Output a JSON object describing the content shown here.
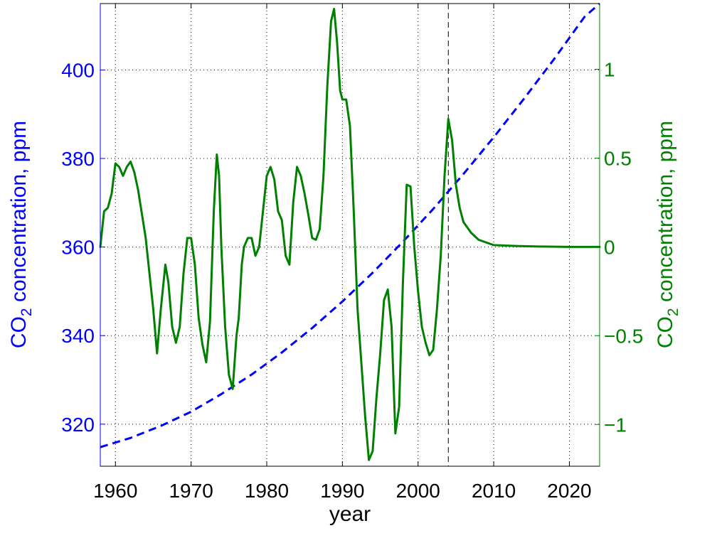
{
  "chart_data": {
    "type": "line",
    "xlabel": "year",
    "xlim": [
      1958,
      2024
    ],
    "x_ticks": [
      "1960",
      "1970",
      "1980",
      "1990",
      "2000",
      "2010",
      "2020"
    ],
    "y_left": {
      "label_main": "CO",
      "label_sub": "2",
      "label_rest": " concentration, ppm",
      "color": "#0000ff",
      "ylim": [
        310.5,
        415
      ],
      "ticks": [
        "320",
        "340",
        "360",
        "380",
        "400"
      ]
    },
    "y_right": {
      "label_main": "CO",
      "label_sub": "2",
      "label_rest": " concentration, ppm",
      "color": "#008000",
      "ylim": [
        -1.235,
        1.37
      ],
      "ticks": [
        "−1",
        "−0.5",
        "0",
        "0.5",
        "1"
      ]
    },
    "grid": true,
    "vline_x": 2004,
    "series": [
      {
        "axis": "left",
        "style": "dashed",
        "color": "#0000ff",
        "x": [
          1958,
          1962,
          1966,
          1970,
          1974,
          1978,
          1982,
          1986,
          1990,
          1994,
          1998,
          2002,
          2006,
          2010,
          2014,
          2018,
          2022,
          2024
        ],
        "y": [
          314.8,
          316.9,
          319.6,
          322.8,
          326.8,
          331.2,
          336.2,
          341.7,
          347.7,
          354.2,
          361.2,
          368.6,
          376.5,
          384.8,
          393.5,
          402.5,
          412.0,
          417.0
        ]
      },
      {
        "axis": "right",
        "style": "solid",
        "color": "#008000",
        "x": [
          1958,
          1958.5,
          1959,
          1959.5,
          1960,
          1960.5,
          1961,
          1961.5,
          1962,
          1962.5,
          1963,
          1964,
          1965,
          1965.5,
          1966,
          1966.6,
          1967,
          1967.5,
          1968,
          1968.5,
          1969,
          1969.5,
          1970,
          1970.5,
          1971,
          1971.5,
          1972,
          1972.5,
          1973,
          1973.4,
          1973.7,
          1974,
          1974.5,
          1975,
          1975.5,
          1976,
          1976.3,
          1976.7,
          1977,
          1977.5,
          1978,
          1978.5,
          1979,
          1979.5,
          1980,
          1980.5,
          1981,
          1981.5,
          1982,
          1982.5,
          1983,
          1983.5,
          1984,
          1984.5,
          1985,
          1985.5,
          1986,
          1986.5,
          1987,
          1987.5,
          1988,
          1988.5,
          1988.9,
          1989.3,
          1989.7,
          1990,
          1990.5,
          1991,
          1991.5,
          1992,
          1993,
          1993.5,
          1994,
          1994.5,
          1995,
          1995.5,
          1996,
          1996.5,
          1997,
          1997.5,
          1998,
          1998.5,
          1999,
          1999.5,
          2000,
          2000.5,
          2001,
          2001.5,
          2002,
          2002.5,
          2003,
          2003.5,
          2004,
          2004.5,
          2005,
          2005.5,
          2006,
          2007,
          2008,
          2010,
          2013,
          2016,
          2020,
          2024
        ],
        "y": [
          0.0,
          0.2,
          0.22,
          0.3,
          0.47,
          0.45,
          0.4,
          0.45,
          0.48,
          0.42,
          0.32,
          0.05,
          -0.35,
          -0.6,
          -0.35,
          -0.1,
          -0.2,
          -0.45,
          -0.54,
          -0.45,
          -0.15,
          0.05,
          0.05,
          -0.1,
          -0.4,
          -0.55,
          -0.65,
          -0.42,
          0.2,
          0.52,
          0.4,
          0.0,
          -0.45,
          -0.72,
          -0.8,
          -0.5,
          -0.4,
          -0.1,
          -0.0,
          0.05,
          0.05,
          -0.05,
          0.0,
          0.2,
          0.4,
          0.45,
          0.38,
          0.2,
          0.15,
          -0.05,
          -0.1,
          0.25,
          0.45,
          0.4,
          0.3,
          0.18,
          0.05,
          0.04,
          0.1,
          0.4,
          0.9,
          1.27,
          1.34,
          1.15,
          0.88,
          0.83,
          0.83,
          0.68,
          0.2,
          -0.35,
          -0.95,
          -1.2,
          -1.15,
          -0.85,
          -0.6,
          -0.3,
          -0.24,
          -0.45,
          -1.05,
          -0.9,
          -0.2,
          0.35,
          0.34,
          0.0,
          -0.25,
          -0.45,
          -0.54,
          -0.61,
          -0.58,
          -0.35,
          -0.05,
          0.4,
          0.72,
          0.6,
          0.35,
          0.22,
          0.14,
          0.08,
          0.04,
          0.01,
          0.005,
          0.002,
          0.0,
          0.0
        ]
      }
    ]
  }
}
